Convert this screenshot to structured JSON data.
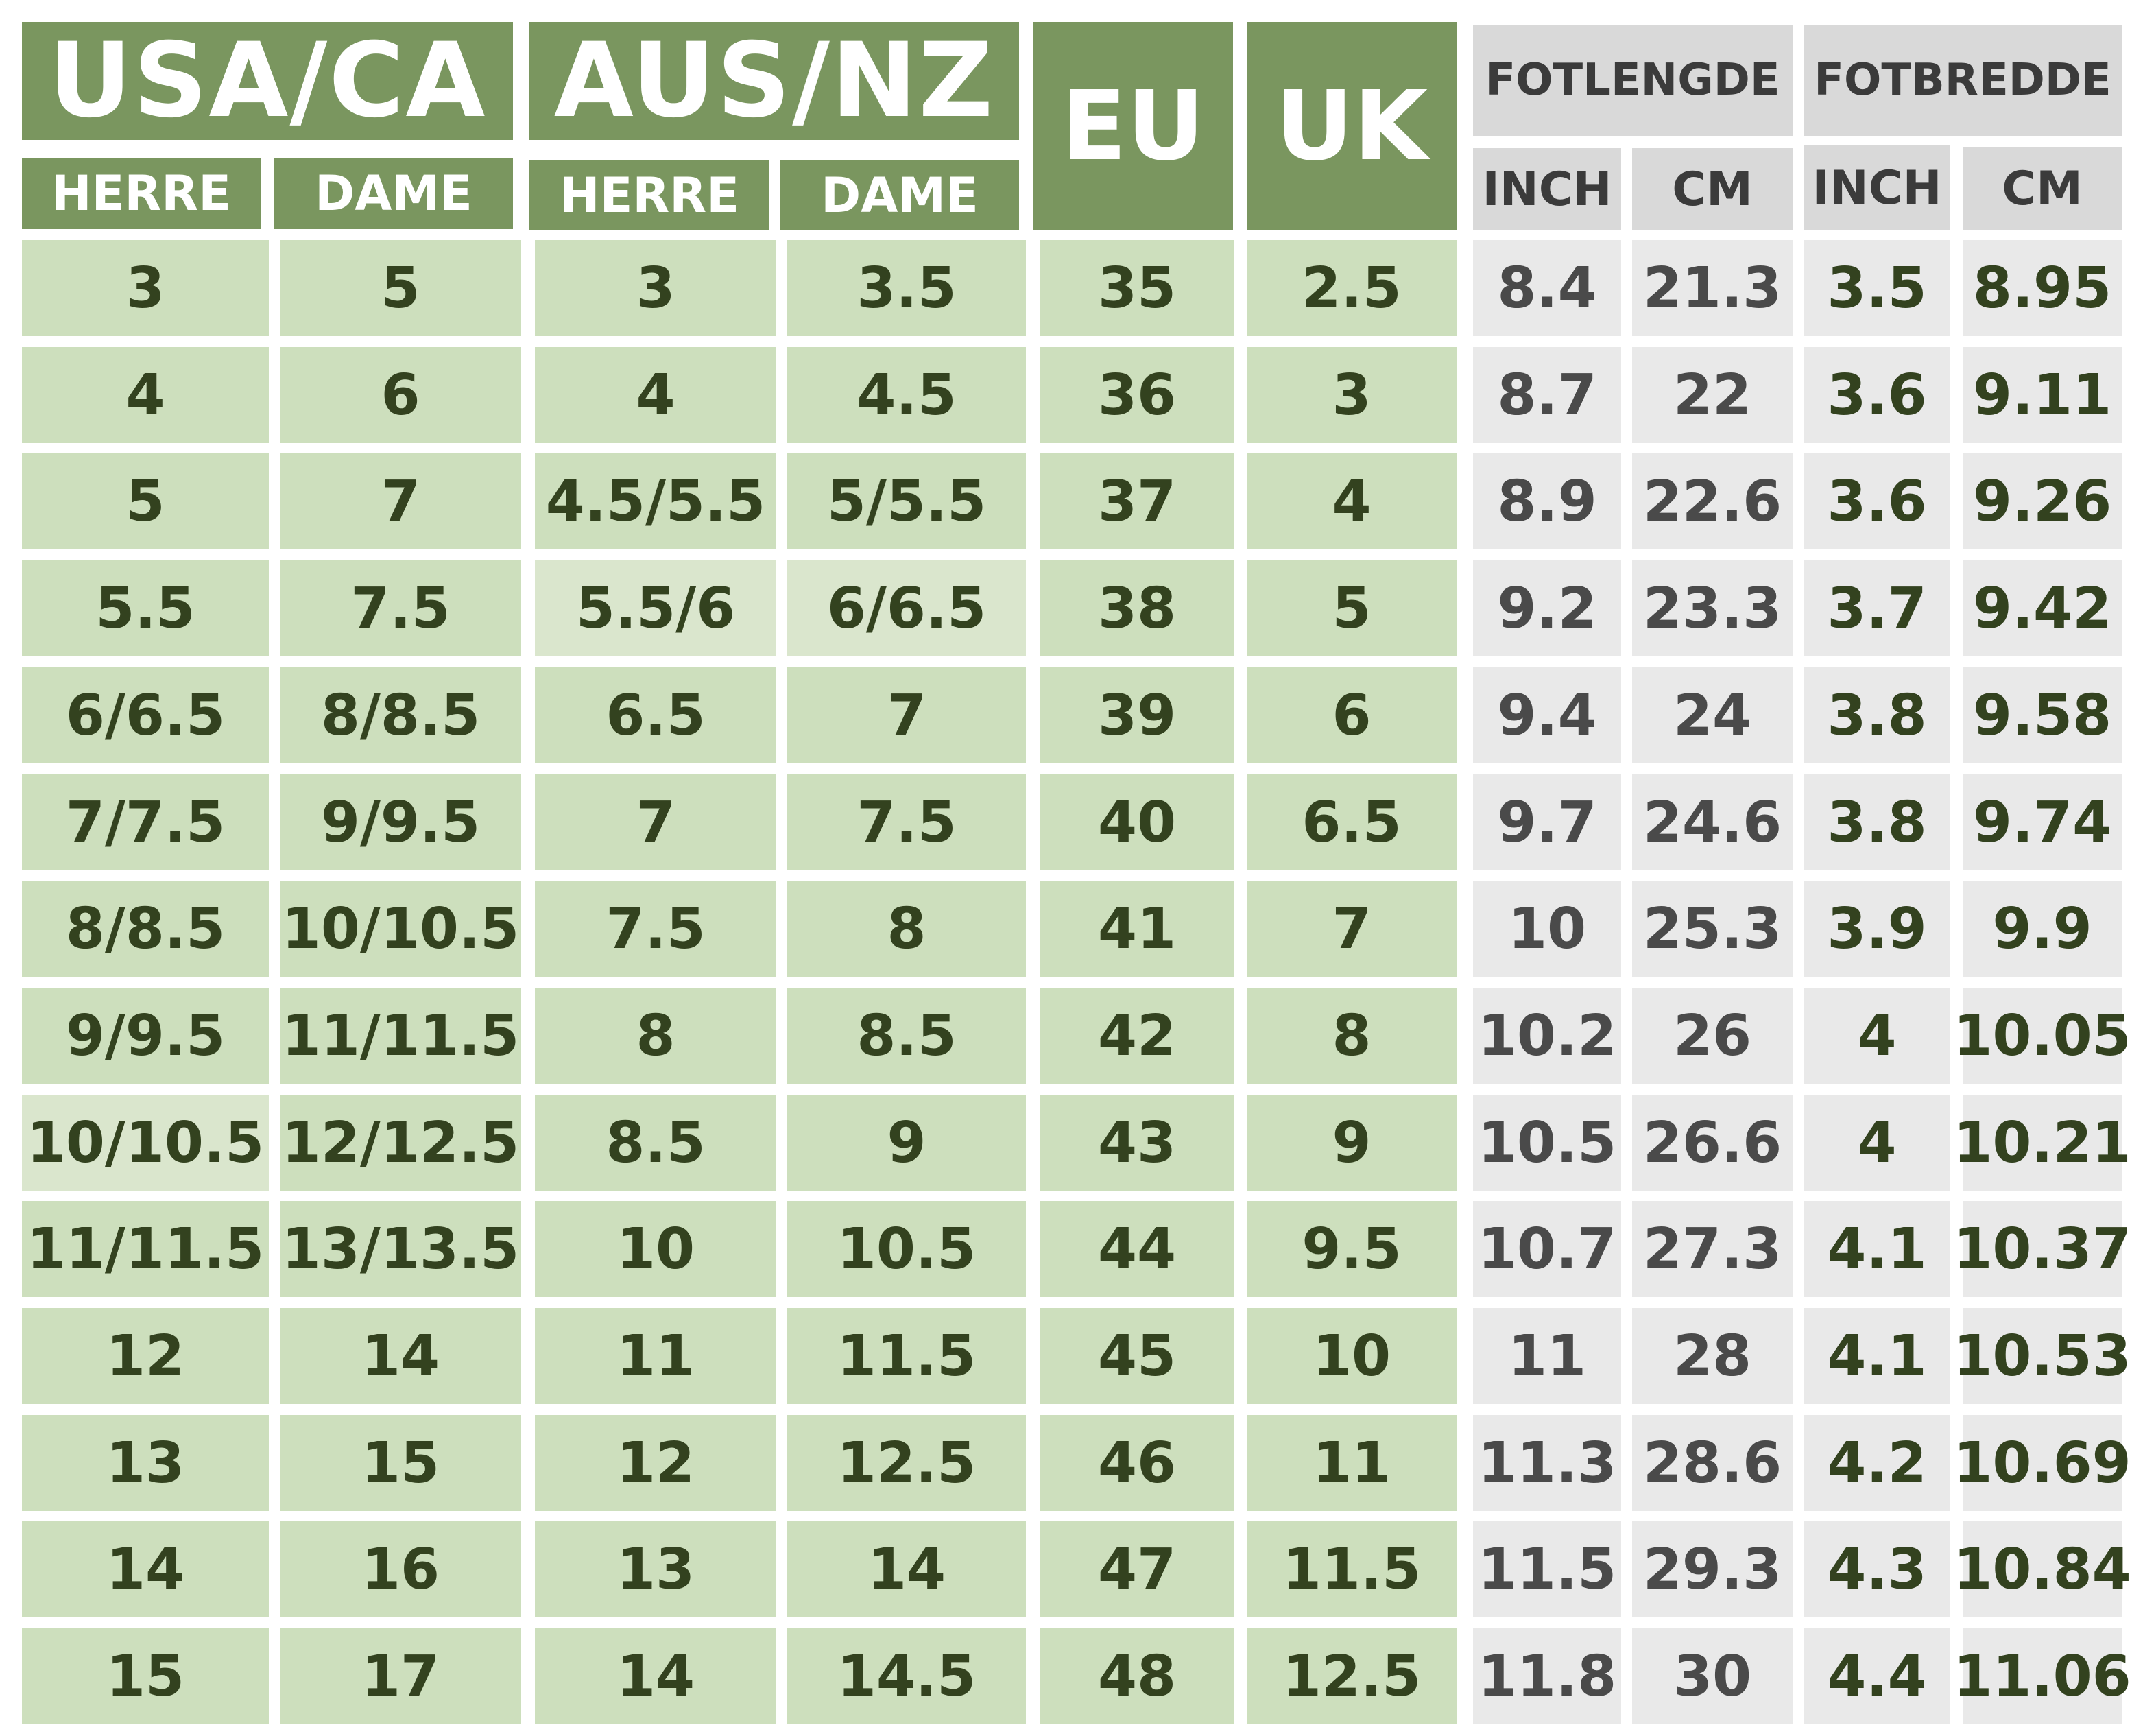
{
  "header": {
    "usa_ca": "USA/CA",
    "aus_nz": "AUS/NZ",
    "eu": "EU",
    "uk": "UK",
    "fotlengde": "FOTLENGDE",
    "fotbredde": "FOTBREDDE",
    "herre": "HERRE",
    "dame": "DAME",
    "inch": "INCH",
    "cm": "CM"
  },
  "colors": {
    "header_green": "#7a965f",
    "cell_green": "#cddfbd",
    "header_gray": "#d9d9d9",
    "cell_gray": "#e9e9e9",
    "text_dark_green": "#33421f",
    "text_gray": "#4a4a4a"
  },
  "rows": [
    [
      "3",
      "5",
      "3",
      "3.5",
      "35",
      "2.5",
      "8.4",
      "21.3",
      "3.5",
      "8.95"
    ],
    [
      "4",
      "6",
      "4",
      "4.5",
      "36",
      "3",
      "8.7",
      "22",
      "3.6",
      "9.11"
    ],
    [
      "5",
      "7",
      "4.5/5.5",
      "5/5.5",
      "37",
      "4",
      "8.9",
      "22.6",
      "3.6",
      "9.26"
    ],
    [
      "5.5",
      "7.5",
      "5.5/6",
      "6/6.5",
      "38",
      "5",
      "9.2",
      "23.3",
      "3.7",
      "9.42"
    ],
    [
      "6/6.5",
      "8/8.5",
      "6.5",
      "7",
      "39",
      "6",
      "9.4",
      "24",
      "3.8",
      "9.58"
    ],
    [
      "7/7.5",
      "9/9.5",
      "7",
      "7.5",
      "40",
      "6.5",
      "9.7",
      "24.6",
      "3.8",
      "9.74"
    ],
    [
      "8/8.5",
      "10/10.5",
      "7.5",
      "8",
      "41",
      "7",
      "10",
      "25.3",
      "3.9",
      "9.9"
    ],
    [
      "9/9.5",
      "11/11.5",
      "8",
      "8.5",
      "42",
      "8",
      "10.2",
      "26",
      "4",
      "10.05"
    ],
    [
      "10/10.5",
      "12/12.5",
      "8.5",
      "9",
      "43",
      "9",
      "10.5",
      "26.6",
      "4",
      "10.21"
    ],
    [
      "11/11.5",
      "13/13.5",
      "10",
      "10.5",
      "44",
      "9.5",
      "10.7",
      "27.3",
      "4.1",
      "10.37"
    ],
    [
      "12",
      "14",
      "11",
      "11.5",
      "45",
      "10",
      "11",
      "28",
      "4.1",
      "10.53"
    ],
    [
      "13",
      "15",
      "12",
      "12.5",
      "46",
      "11",
      "11.3",
      "28.6",
      "4.2",
      "10.69"
    ],
    [
      "14",
      "16",
      "13",
      "14",
      "47",
      "11.5",
      "11.5",
      "29.3",
      "4.3",
      "10.84"
    ],
    [
      "15",
      "17",
      "14",
      "14.5",
      "48",
      "12.5",
      "11.8",
      "30",
      "4.4",
      "11.06"
    ]
  ]
}
